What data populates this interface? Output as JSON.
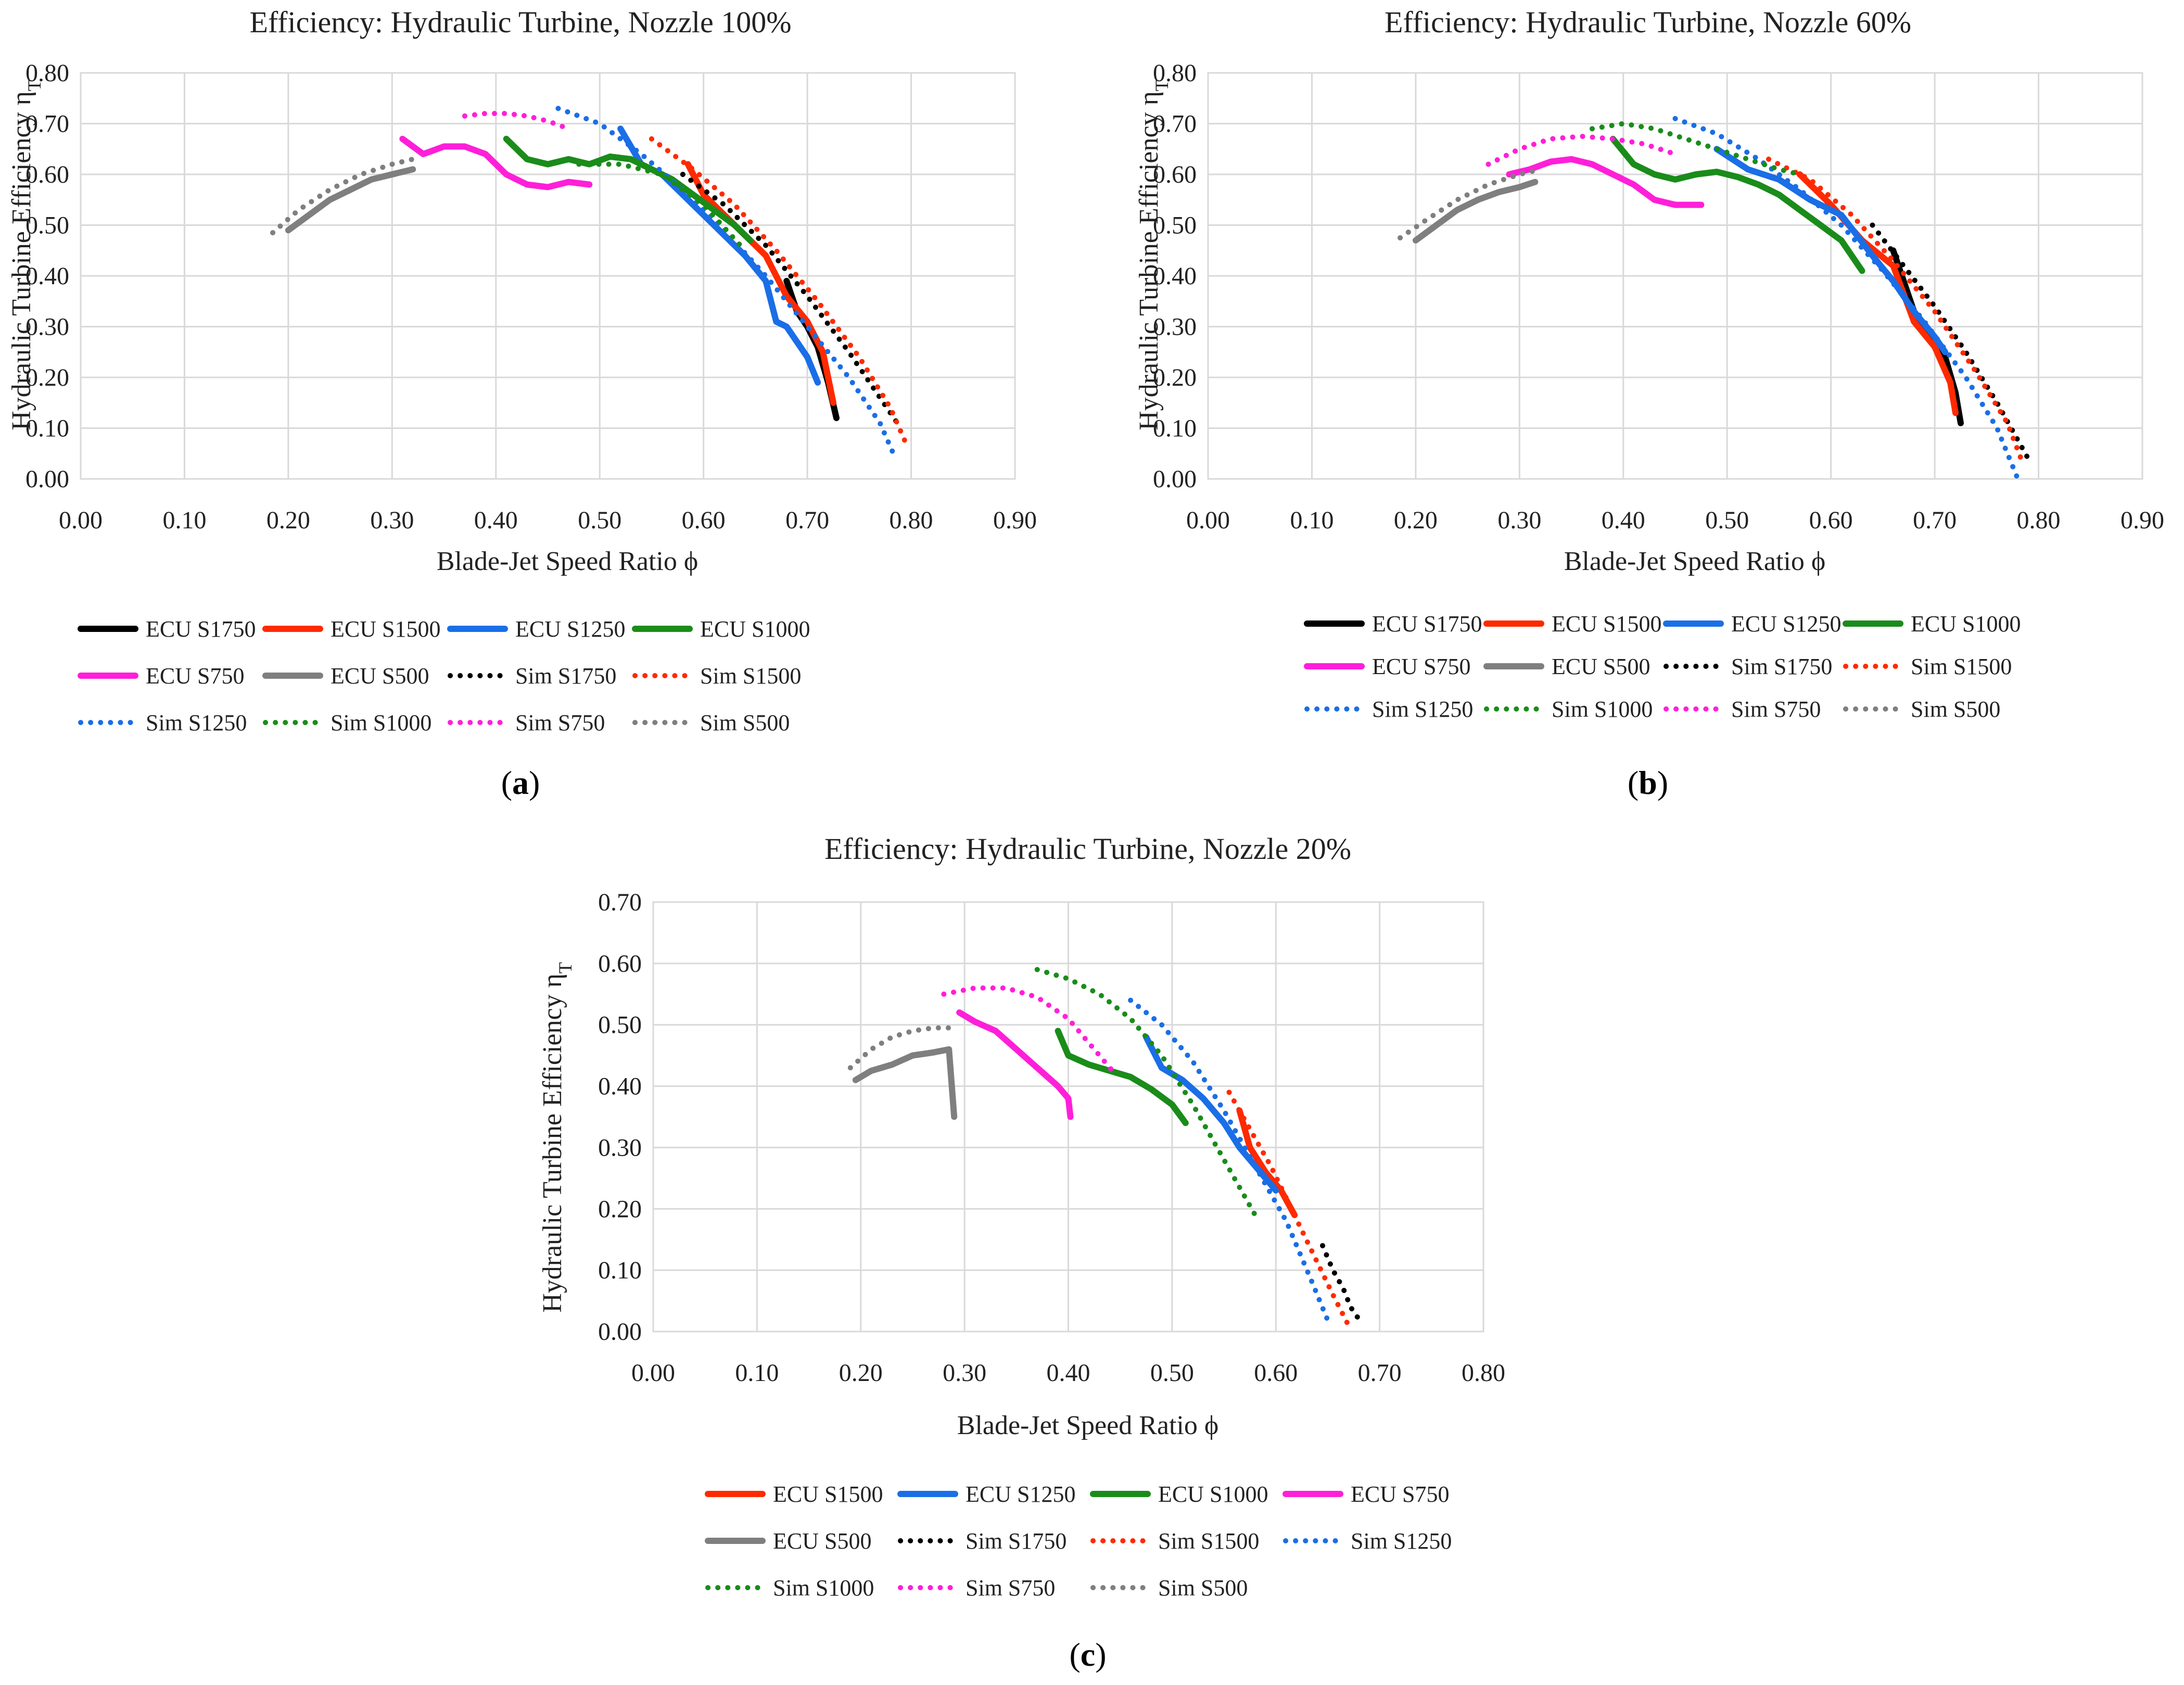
{
  "figure": {
    "panels": [
      {
        "tag_open": "(",
        "tag_letter": "a",
        "tag_close": ")"
      },
      {
        "tag_open": "(",
        "tag_letter": "b",
        "tag_close": ")"
      },
      {
        "tag_open": "(",
        "tag_letter": "c",
        "tag_close": ")"
      }
    ]
  },
  "chart_data": [
    {
      "type": "line",
      "title": "Efficiency: Hydraulic Turbine, Nozzle 100%",
      "xlabel": "Blade-Jet Speed Ratio ϕ",
      "ylabel": "Hydraulic Turbine Efficiency η",
      "ylabel_sub": "T",
      "xlim": [
        0,
        0.9
      ],
      "ylim": [
        0,
        0.8
      ],
      "xticks": [
        "0.00",
        "0.10",
        "0.20",
        "0.30",
        "0.40",
        "0.50",
        "0.60",
        "0.70",
        "0.80",
        "0.90"
      ],
      "yticks": [
        "0.00",
        "0.10",
        "0.20",
        "0.30",
        "0.40",
        "0.50",
        "0.60",
        "0.70",
        "0.80"
      ],
      "grid": true,
      "legend_position": "bottom",
      "series": [
        {
          "name": "ECU S1750",
          "color": "#000000",
          "style": "solid",
          "x": [
            0.68,
            0.69,
            0.7,
            0.71,
            0.72,
            0.728
          ],
          "y": [
            0.39,
            0.33,
            0.3,
            0.26,
            0.19,
            0.12
          ]
        },
        {
          "name": "ECU S1500",
          "color": "#ff2a00",
          "style": "solid",
          "x": [
            0.585,
            0.6,
            0.62,
            0.64,
            0.66,
            0.68,
            0.7,
            0.715,
            0.725
          ],
          "y": [
            0.62,
            0.56,
            0.52,
            0.48,
            0.44,
            0.36,
            0.31,
            0.25,
            0.15
          ]
        },
        {
          "name": "ECU S1250",
          "color": "#1a6ee6",
          "style": "solid",
          "x": [
            0.52,
            0.54,
            0.56,
            0.58,
            0.6,
            0.62,
            0.64,
            0.66,
            0.67,
            0.68,
            0.7,
            0.71
          ],
          "y": [
            0.69,
            0.62,
            0.6,
            0.56,
            0.52,
            0.48,
            0.44,
            0.39,
            0.31,
            0.3,
            0.24,
            0.19
          ]
        },
        {
          "name": "ECU S1000",
          "color": "#1a8c1a",
          "style": "solid",
          "x": [
            0.41,
            0.43,
            0.45,
            0.47,
            0.49,
            0.51,
            0.53,
            0.55,
            0.57,
            0.59,
            0.61,
            0.63,
            0.645
          ],
          "y": [
            0.67,
            0.63,
            0.62,
            0.63,
            0.62,
            0.635,
            0.63,
            0.61,
            0.59,
            0.56,
            0.53,
            0.5,
            0.47
          ]
        },
        {
          "name": "ECU S750",
          "color": "#ff1fd9",
          "style": "solid",
          "x": [
            0.31,
            0.33,
            0.35,
            0.37,
            0.39,
            0.41,
            0.43,
            0.45,
            0.47,
            0.49
          ],
          "y": [
            0.67,
            0.64,
            0.655,
            0.655,
            0.64,
            0.6,
            0.58,
            0.575,
            0.585,
            0.58
          ]
        },
        {
          "name": "ECU S500",
          "color": "#7f7f7f",
          "style": "solid",
          "x": [
            0.2,
            0.22,
            0.24,
            0.26,
            0.28,
            0.3,
            0.32
          ],
          "y": [
            0.49,
            0.52,
            0.55,
            0.57,
            0.59,
            0.6,
            0.61
          ]
        },
        {
          "name": "Sim S1750",
          "color": "#000000",
          "style": "dotted",
          "x": [
            0.58,
            0.62,
            0.66,
            0.7,
            0.74,
            0.77,
            0.79
          ],
          "y": [
            0.6,
            0.54,
            0.46,
            0.36,
            0.25,
            0.16,
            0.1
          ]
        },
        {
          "name": "Sim S1500",
          "color": "#ff2a00",
          "style": "dotted",
          "x": [
            0.55,
            0.59,
            0.63,
            0.67,
            0.71,
            0.75,
            0.78,
            0.795
          ],
          "y": [
            0.67,
            0.61,
            0.54,
            0.45,
            0.35,
            0.24,
            0.14,
            0.07
          ]
        },
        {
          "name": "Sim S1250",
          "color": "#1a6ee6",
          "style": "dotted",
          "x": [
            0.46,
            0.5,
            0.54,
            0.58,
            0.62,
            0.66,
            0.7,
            0.74,
            0.77,
            0.785
          ],
          "y": [
            0.73,
            0.7,
            0.64,
            0.57,
            0.49,
            0.4,
            0.3,
            0.2,
            0.11,
            0.04
          ]
        },
        {
          "name": "Sim S1000",
          "color": "#1a8c1a",
          "style": "dotted",
          "x": [
            0.48,
            0.52,
            0.56,
            0.6,
            0.64
          ],
          "y": [
            0.62,
            0.62,
            0.6,
            0.54,
            0.45
          ]
        },
        {
          "name": "Sim S750",
          "color": "#ff1fd9",
          "style": "dotted",
          "x": [
            0.37,
            0.39,
            0.41,
            0.43,
            0.45,
            0.47
          ],
          "y": [
            0.715,
            0.72,
            0.72,
            0.715,
            0.705,
            0.69
          ]
        },
        {
          "name": "Sim S500",
          "color": "#7f7f7f",
          "style": "dotted",
          "x": [
            0.185,
            0.21,
            0.24,
            0.27,
            0.3,
            0.32
          ],
          "y": [
            0.485,
            0.53,
            0.57,
            0.6,
            0.62,
            0.63
          ]
        }
      ]
    },
    {
      "type": "line",
      "title": "Efficiency: Hydraulic Turbine, Nozzle 60%",
      "xlabel": "Blade-Jet Speed Ratio ϕ",
      "ylabel": "Hydraulic Turbine Efficiency η",
      "ylabel_sub": "T",
      "xlim": [
        0,
        0.9
      ],
      "ylim": [
        0,
        0.8
      ],
      "xticks": [
        "0.00",
        "0.10",
        "0.20",
        "0.30",
        "0.40",
        "0.50",
        "0.60",
        "0.70",
        "0.80",
        "0.90"
      ],
      "yticks": [
        "0.00",
        "0.10",
        "0.20",
        "0.30",
        "0.40",
        "0.50",
        "0.60",
        "0.70",
        "0.80"
      ],
      "grid": true,
      "legend_position": "bottom",
      "series": [
        {
          "name": "ECU S1750",
          "color": "#000000",
          "style": "solid",
          "x": [
            0.66,
            0.67,
            0.68,
            0.69,
            0.7,
            0.71,
            0.72,
            0.725
          ],
          "y": [
            0.45,
            0.39,
            0.33,
            0.3,
            0.27,
            0.24,
            0.17,
            0.11
          ]
        },
        {
          "name": "ECU S1500",
          "color": "#ff2a00",
          "style": "solid",
          "x": [
            0.57,
            0.6,
            0.63,
            0.66,
            0.68,
            0.7,
            0.715,
            0.72
          ],
          "y": [
            0.6,
            0.54,
            0.47,
            0.42,
            0.31,
            0.26,
            0.19,
            0.13
          ]
        },
        {
          "name": "ECU S1250",
          "color": "#1a6ee6",
          "style": "solid",
          "x": [
            0.49,
            0.52,
            0.55,
            0.58,
            0.61,
            0.64,
            0.66,
            0.68,
            0.7,
            0.71
          ],
          "y": [
            0.65,
            0.61,
            0.59,
            0.55,
            0.52,
            0.44,
            0.39,
            0.33,
            0.28,
            0.25
          ]
        },
        {
          "name": "ECU S1000",
          "color": "#1a8c1a",
          "style": "solid",
          "x": [
            0.39,
            0.41,
            0.43,
            0.45,
            0.47,
            0.49,
            0.51,
            0.53,
            0.55,
            0.57,
            0.59,
            0.61,
            0.63
          ],
          "y": [
            0.67,
            0.62,
            0.6,
            0.59,
            0.6,
            0.605,
            0.595,
            0.58,
            0.56,
            0.53,
            0.5,
            0.47,
            0.41
          ]
        },
        {
          "name": "ECU S750",
          "color": "#ff1fd9",
          "style": "solid",
          "x": [
            0.29,
            0.31,
            0.33,
            0.35,
            0.37,
            0.39,
            0.41,
            0.43,
            0.45,
            0.475
          ],
          "y": [
            0.6,
            0.61,
            0.625,
            0.63,
            0.62,
            0.6,
            0.58,
            0.55,
            0.54,
            0.54
          ]
        },
        {
          "name": "ECU S500",
          "color": "#7f7f7f",
          "style": "solid",
          "x": [
            0.2,
            0.22,
            0.24,
            0.26,
            0.28,
            0.3,
            0.315
          ],
          "y": [
            0.47,
            0.5,
            0.53,
            0.55,
            0.565,
            0.575,
            0.585
          ]
        },
        {
          "name": "Sim S1750",
          "color": "#000000",
          "style": "dotted",
          "x": [
            0.64,
            0.67,
            0.7,
            0.73,
            0.76,
            0.79
          ],
          "y": [
            0.5,
            0.42,
            0.34,
            0.25,
            0.15,
            0.04
          ]
        },
        {
          "name": "Sim S1500",
          "color": "#ff2a00",
          "style": "dotted",
          "x": [
            0.54,
            0.58,
            0.62,
            0.66,
            0.7,
            0.74,
            0.77,
            0.785
          ],
          "y": [
            0.63,
            0.59,
            0.52,
            0.43,
            0.33,
            0.21,
            0.11,
            0.03
          ]
        },
        {
          "name": "Sim S1250",
          "color": "#1a6ee6",
          "style": "dotted",
          "x": [
            0.45,
            0.49,
            0.53,
            0.57,
            0.61,
            0.65,
            0.69,
            0.73,
            0.76,
            0.78
          ],
          "y": [
            0.71,
            0.68,
            0.63,
            0.57,
            0.5,
            0.41,
            0.31,
            0.2,
            0.1,
            0.0
          ]
        },
        {
          "name": "Sim S1000",
          "color": "#1a8c1a",
          "style": "dotted",
          "x": [
            0.37,
            0.4,
            0.43,
            0.46,
            0.49,
            0.52,
            0.55,
            0.57
          ],
          "y": [
            0.69,
            0.7,
            0.69,
            0.67,
            0.65,
            0.63,
            0.61,
            0.6
          ]
        },
        {
          "name": "Sim S750",
          "color": "#ff1fd9",
          "style": "dotted",
          "x": [
            0.27,
            0.3,
            0.33,
            0.36,
            0.39,
            0.42,
            0.45
          ],
          "y": [
            0.62,
            0.65,
            0.67,
            0.675,
            0.67,
            0.66,
            0.64
          ]
        },
        {
          "name": "Sim S500",
          "color": "#7f7f7f",
          "style": "dotted",
          "x": [
            0.185,
            0.21,
            0.24,
            0.27,
            0.3,
            0.32
          ],
          "y": [
            0.475,
            0.51,
            0.55,
            0.58,
            0.6,
            0.61
          ]
        }
      ]
    },
    {
      "type": "line",
      "title": "Efficiency: Hydraulic Turbine, Nozzle 20%",
      "xlabel": "Blade-Jet Speed Ratio ϕ",
      "ylabel": "Hydraulic Turbine Efficiency η",
      "ylabel_sub": "T",
      "xlim": [
        0,
        0.8
      ],
      "ylim": [
        0,
        0.7
      ],
      "xticks": [
        "0.00",
        "0.10",
        "0.20",
        "0.30",
        "0.40",
        "0.50",
        "0.60",
        "0.70",
        "0.80"
      ],
      "yticks": [
        "0.00",
        "0.10",
        "0.20",
        "0.30",
        "0.40",
        "0.50",
        "0.60",
        "0.70"
      ],
      "grid": true,
      "legend_position": "bottom",
      "series": [
        {
          "name": "ECU S1500",
          "color": "#ff2a00",
          "style": "solid",
          "x": [
            0.565,
            0.575,
            0.59,
            0.605,
            0.618
          ],
          "y": [
            0.36,
            0.3,
            0.26,
            0.23,
            0.19
          ]
        },
        {
          "name": "ECU S1250",
          "color": "#1a6ee6",
          "style": "solid",
          "x": [
            0.475,
            0.49,
            0.51,
            0.53,
            0.55,
            0.565,
            0.58,
            0.6
          ],
          "y": [
            0.48,
            0.43,
            0.41,
            0.38,
            0.34,
            0.3,
            0.27,
            0.23
          ]
        },
        {
          "name": "ECU S1000",
          "color": "#1a8c1a",
          "style": "solid",
          "x": [
            0.39,
            0.4,
            0.42,
            0.44,
            0.46,
            0.48,
            0.5,
            0.513
          ],
          "y": [
            0.49,
            0.45,
            0.435,
            0.425,
            0.415,
            0.395,
            0.37,
            0.34
          ]
        },
        {
          "name": "ECU S750",
          "color": "#ff1fd9",
          "style": "solid",
          "x": [
            0.295,
            0.31,
            0.33,
            0.35,
            0.37,
            0.39,
            0.4,
            0.402
          ],
          "y": [
            0.52,
            0.505,
            0.49,
            0.46,
            0.43,
            0.4,
            0.38,
            0.35
          ]
        },
        {
          "name": "ECU S500",
          "color": "#7f7f7f",
          "style": "solid",
          "x": [
            0.195,
            0.21,
            0.23,
            0.25,
            0.27,
            0.285,
            0.29
          ],
          "y": [
            0.41,
            0.425,
            0.435,
            0.45,
            0.455,
            0.46,
            0.35
          ]
        },
        {
          "name": "Sim S1750",
          "color": "#000000",
          "style": "dotted",
          "x": [
            0.645,
            0.655,
            0.665,
            0.672,
            0.68
          ],
          "y": [
            0.14,
            0.1,
            0.07,
            0.04,
            0.02
          ]
        },
        {
          "name": "Sim S1500",
          "color": "#ff2a00",
          "style": "dotted",
          "x": [
            0.555,
            0.575,
            0.595,
            0.615,
            0.635,
            0.655,
            0.67
          ],
          "y": [
            0.39,
            0.33,
            0.27,
            0.2,
            0.13,
            0.06,
            0.01
          ]
        },
        {
          "name": "Sim S1250",
          "color": "#1a6ee6",
          "style": "dotted",
          "x": [
            0.46,
            0.49,
            0.52,
            0.55,
            0.58,
            0.61,
            0.635,
            0.652
          ],
          "y": [
            0.54,
            0.5,
            0.44,
            0.36,
            0.27,
            0.18,
            0.08,
            0.01
          ]
        },
        {
          "name": "Sim S1000",
          "color": "#1a8c1a",
          "style": "dotted",
          "x": [
            0.37,
            0.4,
            0.43,
            0.46,
            0.49,
            0.52,
            0.55,
            0.58
          ],
          "y": [
            0.59,
            0.575,
            0.55,
            0.51,
            0.45,
            0.37,
            0.28,
            0.19
          ]
        },
        {
          "name": "Sim S750",
          "color": "#ff1fd9",
          "style": "dotted",
          "x": [
            0.28,
            0.31,
            0.34,
            0.37,
            0.4,
            0.43,
            0.445
          ],
          "y": [
            0.55,
            0.56,
            0.56,
            0.545,
            0.51,
            0.45,
            0.42
          ]
        },
        {
          "name": "Sim S500",
          "color": "#7f7f7f",
          "style": "dotted",
          "x": [
            0.19,
            0.21,
            0.23,
            0.25,
            0.27,
            0.285
          ],
          "y": [
            0.43,
            0.46,
            0.48,
            0.49,
            0.495,
            0.495
          ]
        }
      ]
    }
  ]
}
